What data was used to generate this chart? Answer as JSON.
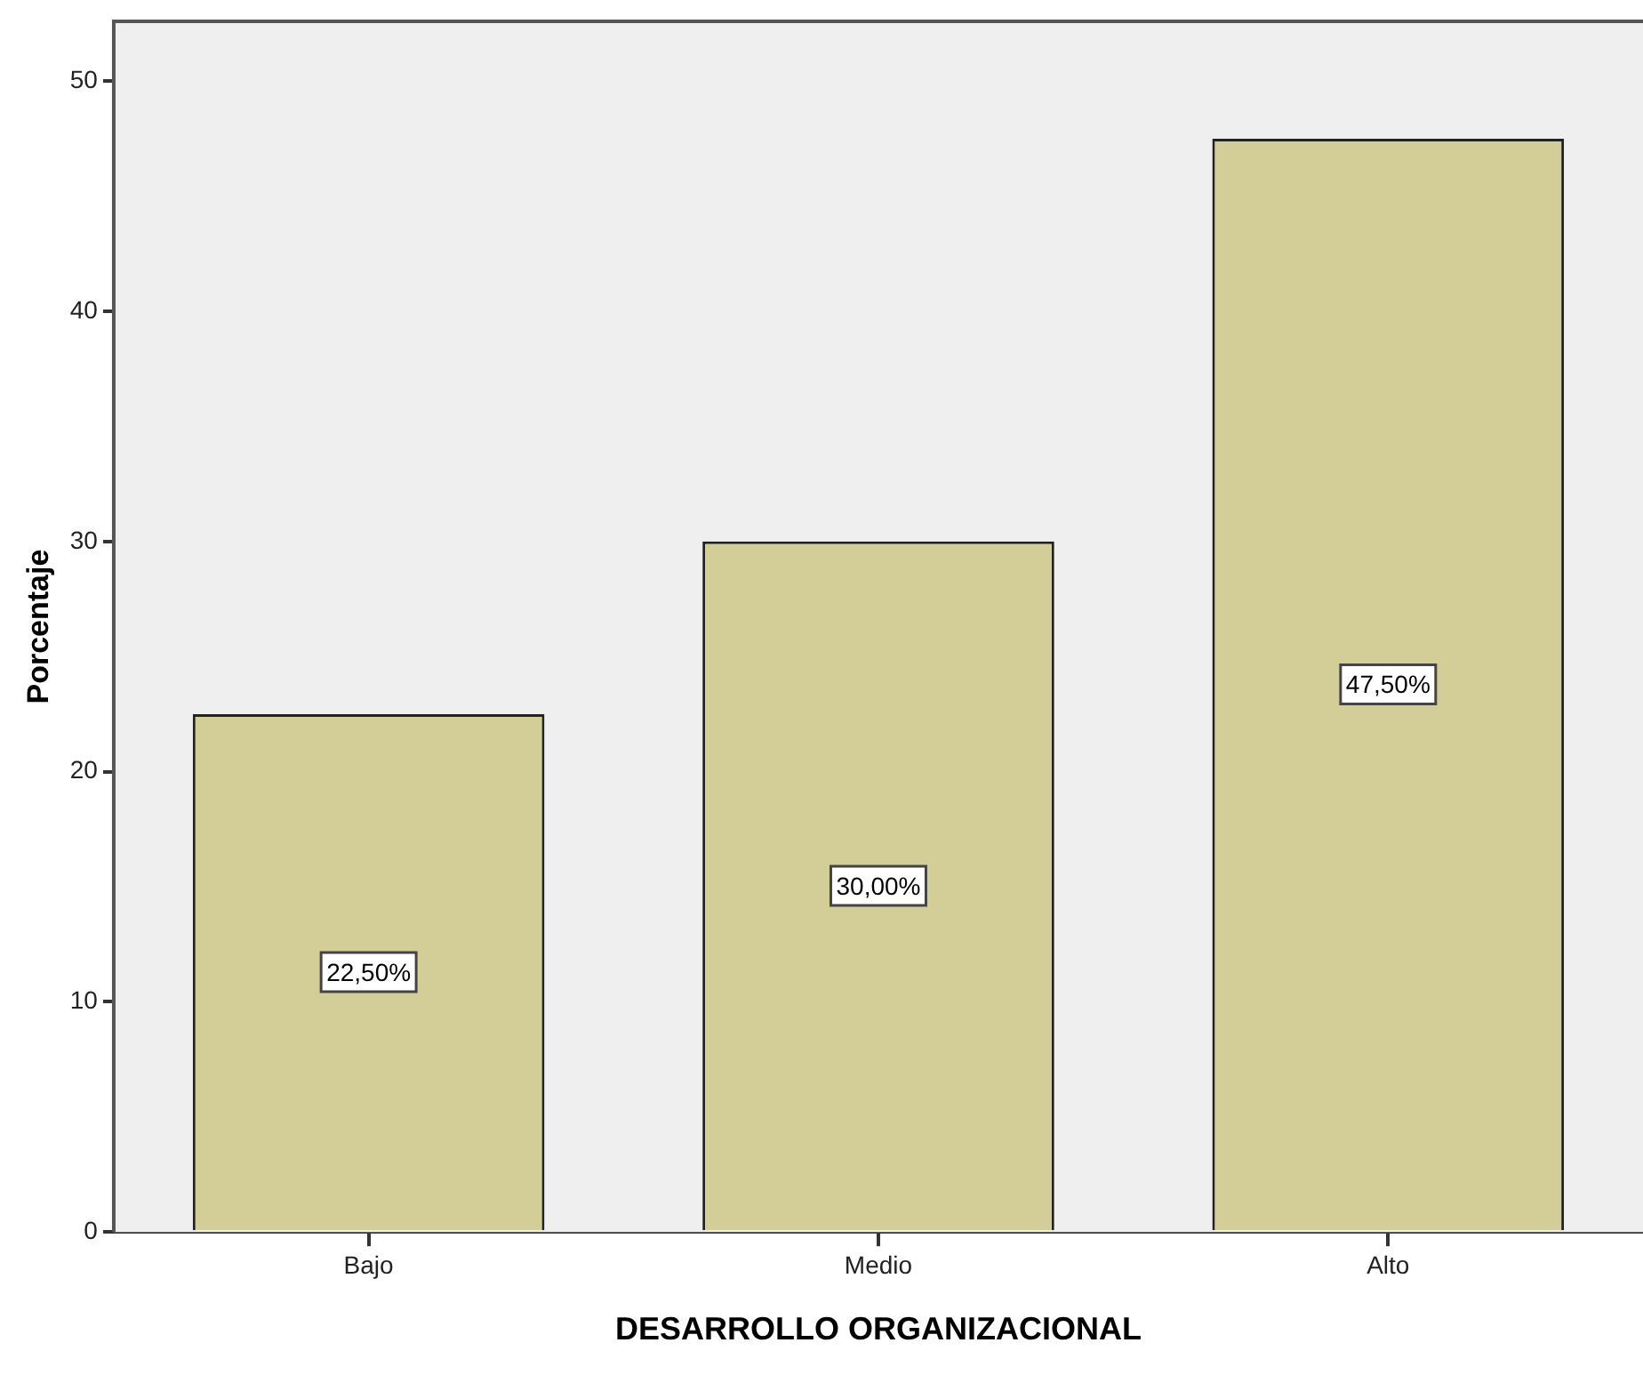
{
  "chart_data": {
    "type": "bar",
    "xlabel": "DESARROLLO ORGANIZACIONAL",
    "ylabel": "Porcentaje",
    "categories": [
      "Bajo",
      "Medio",
      "Alto"
    ],
    "values": [
      22.5,
      30,
      47.5
    ],
    "value_labels": [
      "22,50%",
      "30,00%",
      "47,50%"
    ],
    "color": "#d3ce97",
    "ylim": [
      0,
      52.6
    ],
    "yticks": [
      0,
      10,
      20,
      30,
      40,
      50
    ]
  }
}
